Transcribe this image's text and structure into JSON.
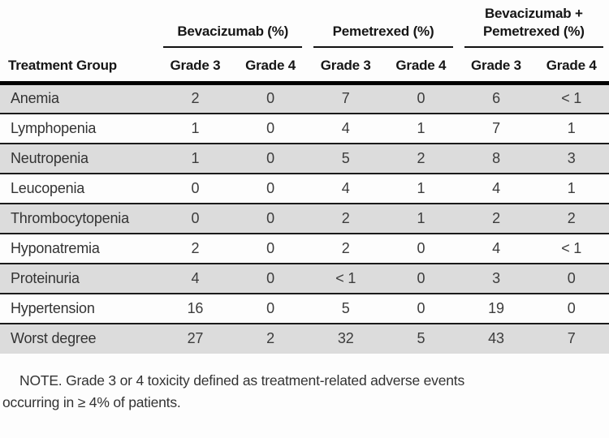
{
  "table": {
    "groups": [
      "Bevacizumab (%)",
      "Pemetrexed (%)",
      "Bevacizumab +\nPemetrexed (%)"
    ],
    "col0_header": "Treatment Group",
    "sub_headers": [
      "Grade 3",
      "Grade 4",
      "Grade 3",
      "Grade 4",
      "Grade 3",
      "Grade 4"
    ],
    "rows": [
      {
        "label": "Anemia",
        "values": [
          "2",
          "0",
          "7",
          "0",
          "6",
          "< 1"
        ]
      },
      {
        "label": "Lymphopenia",
        "values": [
          "1",
          "0",
          "4",
          "1",
          "7",
          "1"
        ]
      },
      {
        "label": "Neutropenia",
        "values": [
          "1",
          "0",
          "5",
          "2",
          "8",
          "3"
        ]
      },
      {
        "label": "Leucopenia",
        "values": [
          "0",
          "0",
          "4",
          "1",
          "4",
          "1"
        ]
      },
      {
        "label": "Thrombocytopenia",
        "values": [
          "0",
          "0",
          "2",
          "1",
          "2",
          "2"
        ]
      },
      {
        "label": "Hyponatremia",
        "values": [
          "2",
          "0",
          "2",
          "0",
          "4",
          "< 1"
        ]
      },
      {
        "label": "Proteinuria",
        "values": [
          "4",
          "0",
          "< 1",
          "0",
          "3",
          "0"
        ]
      },
      {
        "label": "Hypertension",
        "values": [
          "16",
          "0",
          "5",
          "0",
          "19",
          "0"
        ]
      },
      {
        "label": "Worst degree",
        "values": [
          "27",
          "2",
          "32",
          "5",
          "43",
          "7"
        ]
      }
    ],
    "note": "NOTE. Grade 3 or 4 toxicity defined as treatment-related adverse events\noccurring in ≥ 4% of patients."
  },
  "colors": {
    "row_shade": "#dcdcdc",
    "rule": "#000000",
    "body_text": "#3c3c3c"
  }
}
